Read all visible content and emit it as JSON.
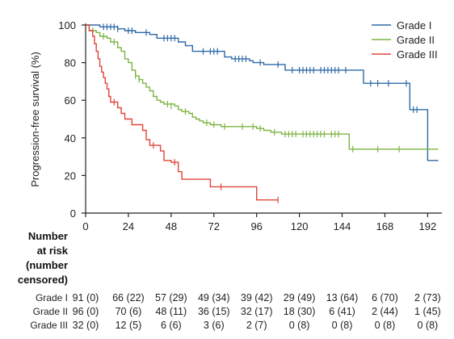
{
  "chart_data": {
    "type": "line",
    "ylabel": "Progression-free survival (%)",
    "xlim": [
      0,
      200
    ],
    "ylim": [
      0,
      100
    ],
    "x_ticks": [
      0,
      24,
      48,
      72,
      96,
      120,
      144,
      168,
      192
    ],
    "y_ticks": [
      0,
      20,
      40,
      60,
      80,
      100
    ],
    "grid": false,
    "legend_position": "top-right",
    "series": [
      {
        "name": "Grade I",
        "color": "#2f6aa8",
        "steps": [
          [
            0,
            100
          ],
          [
            8,
            99
          ],
          [
            18,
            98
          ],
          [
            22,
            97
          ],
          [
            28,
            96
          ],
          [
            36,
            95
          ],
          [
            40,
            93
          ],
          [
            52,
            91
          ],
          [
            56,
            89
          ],
          [
            60,
            86
          ],
          [
            78,
            83
          ],
          [
            82,
            82
          ],
          [
            92,
            81
          ],
          [
            94,
            80
          ],
          [
            100,
            79
          ],
          [
            112,
            76
          ],
          [
            130,
            76
          ],
          [
            150,
            76
          ],
          [
            156,
            69
          ],
          [
            182,
            55
          ],
          [
            192,
            28
          ],
          [
            198,
            28
          ]
        ],
        "censored": [
          [
            10,
            99
          ],
          [
            12,
            99
          ],
          [
            14,
            99
          ],
          [
            16,
            99
          ],
          [
            18,
            98
          ],
          [
            24,
            97
          ],
          [
            26,
            97
          ],
          [
            34,
            96
          ],
          [
            44,
            93
          ],
          [
            46,
            93
          ],
          [
            48,
            93
          ],
          [
            50,
            93
          ],
          [
            66,
            86
          ],
          [
            70,
            86
          ],
          [
            72,
            86
          ],
          [
            74,
            86
          ],
          [
            84,
            82
          ],
          [
            86,
            82
          ],
          [
            88,
            82
          ],
          [
            90,
            82
          ],
          [
            98,
            80
          ],
          [
            108,
            79
          ],
          [
            116,
            76
          ],
          [
            120,
            76
          ],
          [
            122,
            76
          ],
          [
            124,
            76
          ],
          [
            126,
            76
          ],
          [
            128,
            76
          ],
          [
            132,
            76
          ],
          [
            134,
            76
          ],
          [
            136,
            76
          ],
          [
            138,
            76
          ],
          [
            140,
            76
          ],
          [
            142,
            76
          ],
          [
            146,
            76
          ],
          [
            160,
            69
          ],
          [
            164,
            69
          ],
          [
            170,
            69
          ],
          [
            180,
            69
          ],
          [
            184,
            55
          ],
          [
            186,
            55
          ]
        ]
      },
      {
        "name": "Grade II",
        "color": "#7db543",
        "steps": [
          [
            0,
            100
          ],
          [
            2,
            97
          ],
          [
            6,
            96
          ],
          [
            8,
            94
          ],
          [
            12,
            93
          ],
          [
            14,
            91
          ],
          [
            18,
            88
          ],
          [
            20,
            86
          ],
          [
            22,
            82
          ],
          [
            24,
            80
          ],
          [
            26,
            76
          ],
          [
            28,
            73
          ],
          [
            30,
            71
          ],
          [
            32,
            69
          ],
          [
            34,
            67
          ],
          [
            36,
            65
          ],
          [
            38,
            62
          ],
          [
            40,
            60
          ],
          [
            42,
            59
          ],
          [
            44,
            58
          ],
          [
            50,
            57
          ],
          [
            52,
            55
          ],
          [
            54,
            54
          ],
          [
            58,
            53
          ],
          [
            60,
            51
          ],
          [
            62,
            50
          ],
          [
            64,
            49
          ],
          [
            66,
            48
          ],
          [
            70,
            47
          ],
          [
            76,
            46
          ],
          [
            86,
            46
          ],
          [
            96,
            45
          ],
          [
            100,
            44
          ],
          [
            104,
            43
          ],
          [
            110,
            42
          ],
          [
            146,
            42
          ],
          [
            148,
            34
          ],
          [
            198,
            34
          ]
        ],
        "censored": [
          [
            4,
            97
          ],
          [
            10,
            94
          ],
          [
            16,
            91
          ],
          [
            28,
            73
          ],
          [
            30,
            71
          ],
          [
            46,
            58
          ],
          [
            48,
            57
          ],
          [
            56,
            54
          ],
          [
            68,
            48
          ],
          [
            72,
            47
          ],
          [
            78,
            46
          ],
          [
            88,
            46
          ],
          [
            94,
            46
          ],
          [
            98,
            45
          ],
          [
            106,
            43
          ],
          [
            112,
            42
          ],
          [
            114,
            42
          ],
          [
            116,
            42
          ],
          [
            118,
            42
          ],
          [
            122,
            42
          ],
          [
            124,
            42
          ],
          [
            126,
            42
          ],
          [
            128,
            42
          ],
          [
            130,
            42
          ],
          [
            132,
            42
          ],
          [
            134,
            42
          ],
          [
            138,
            42
          ],
          [
            140,
            42
          ],
          [
            142,
            42
          ],
          [
            150,
            34
          ],
          [
            164,
            34
          ],
          [
            176,
            34
          ]
        ]
      },
      {
        "name": "Grade III",
        "color": "#e0453a",
        "steps": [
          [
            0,
            100
          ],
          [
            2,
            97
          ],
          [
            4,
            94
          ],
          [
            5,
            90
          ],
          [
            6,
            86
          ],
          [
            7,
            82
          ],
          [
            8,
            78
          ],
          [
            9,
            75
          ],
          [
            10,
            72
          ],
          [
            11,
            69
          ],
          [
            12,
            66
          ],
          [
            13,
            62
          ],
          [
            14,
            59
          ],
          [
            18,
            56
          ],
          [
            20,
            53
          ],
          [
            22,
            50
          ],
          [
            26,
            47
          ],
          [
            32,
            44
          ],
          [
            34,
            39
          ],
          [
            36,
            36
          ],
          [
            42,
            33
          ],
          [
            44,
            28
          ],
          [
            48,
            27
          ],
          [
            52,
            22
          ],
          [
            54,
            18
          ],
          [
            62,
            18
          ],
          [
            70,
            14
          ],
          [
            96,
            14
          ],
          [
            96,
            7
          ],
          [
            108,
            7
          ]
        ],
        "censored": [
          [
            16,
            59
          ],
          [
            38,
            36
          ],
          [
            50,
            27
          ],
          [
            76,
            14
          ],
          [
            108,
            7
          ]
        ]
      }
    ]
  },
  "risk_table": {
    "heading_lines": [
      "Number",
      "at risk",
      "(number",
      "censored)"
    ],
    "timepoints": [
      0,
      24,
      48,
      72,
      96,
      120,
      144,
      168,
      192
    ],
    "rows": [
      {
        "label": "Grade I",
        "cells": [
          "91 (0)",
          "66 (22)",
          "57 (29)",
          "49 (34)",
          "39 (42)",
          "29 (49)",
          "13 (64)",
          "6 (70)",
          "2 (73)"
        ]
      },
      {
        "label": "Grade II",
        "cells": [
          "96 (0)",
          "70 (6)",
          "48 (11)",
          "36 (15)",
          "32 (17)",
          "18 (30)",
          "6 (41)",
          "2 (44)",
          "1 (45)"
        ]
      },
      {
        "label": "Grade III",
        "cells": [
          "32 (0)",
          "12 (5)",
          "6 (6)",
          "3 (6)",
          "2 (7)",
          "0 (8)",
          "0 (8)",
          "0 (8)",
          "0 (8)"
        ]
      }
    ]
  }
}
